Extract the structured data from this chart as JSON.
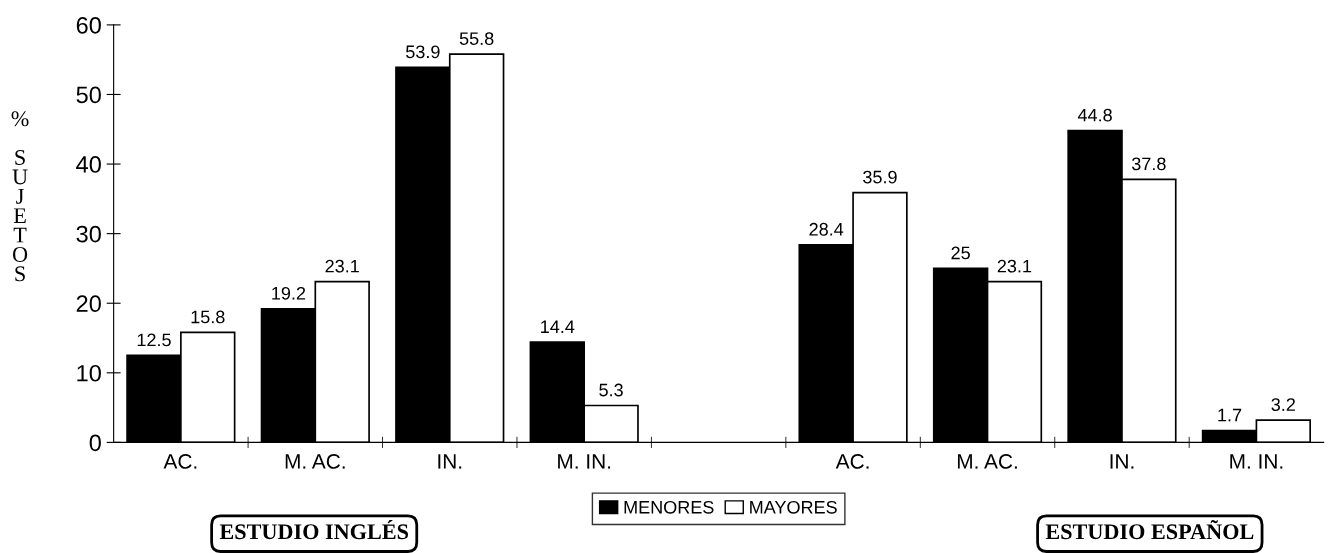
{
  "chart_data": {
    "type": "bar",
    "ylabel": "% SUJETOS",
    "categories": [
      "AC.",
      "M. AC.",
      "IN.",
      "M. IN.",
      null,
      "AC.",
      "M. AC.",
      "IN.",
      "M. IN."
    ],
    "series": [
      {
        "name": "MENORES",
        "color": "#000000",
        "values": [
          12.5,
          19.2,
          53.9,
          14.4,
          null,
          28.4,
          25,
          44.8,
          1.7
        ]
      },
      {
        "name": "MAYORES",
        "color": "#ffffff",
        "values": [
          15.8,
          23.1,
          55.8,
          5.3,
          null,
          35.9,
          23.1,
          37.8,
          3.2
        ]
      }
    ],
    "ylim": [
      0,
      60
    ],
    "yticks": [
      0,
      10,
      20,
      30,
      40,
      50,
      60
    ],
    "data_labels": true,
    "grid": false,
    "legend": "bottom",
    "annotations": [
      "ESTUDIO INGLÉS",
      "ESTUDIO ESPAÑOL"
    ]
  }
}
